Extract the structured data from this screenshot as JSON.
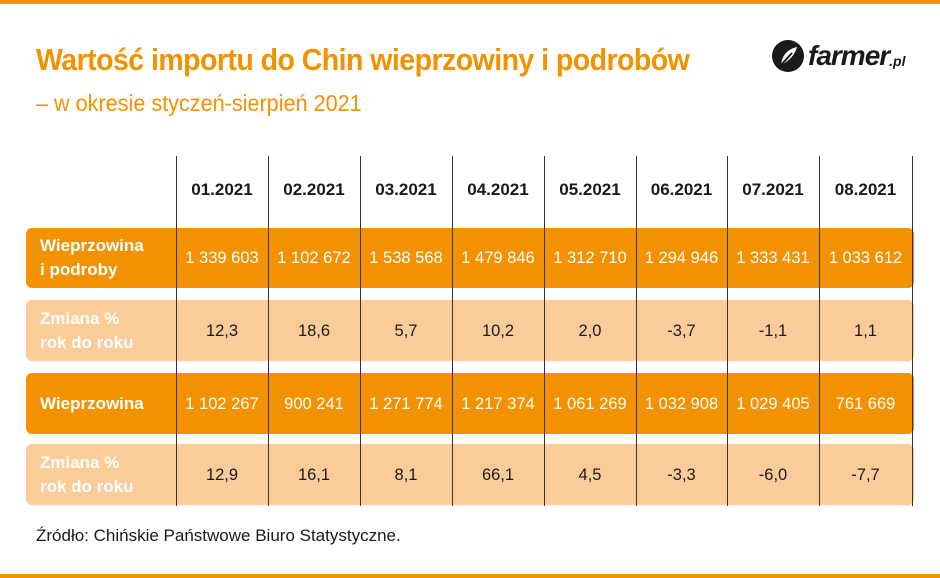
{
  "title": "Wartość importu do Chin wieprzowiny i podrobów",
  "subtitle": "– w okresie styczeń-sierpień 2021",
  "logo": {
    "text": "farmer",
    "suffix": ".pl"
  },
  "colors": {
    "accent": "#f39200",
    "light_band": "#fbcc99"
  },
  "chart_data": {
    "type": "table",
    "columns": [
      "01.2021",
      "02.2021",
      "03.2021",
      "04.2021",
      "05.2021",
      "06.2021",
      "07.2021",
      "08.2021"
    ],
    "rows": [
      {
        "label_line1": "Wieprzowina",
        "label_line2": "i podroby",
        "style": "dark",
        "values": [
          "1 339 603",
          "1 102 672",
          "1 538 568",
          "1 479 846",
          "1 312 710",
          "1 294 946",
          "1 333 431",
          "1 033 612"
        ]
      },
      {
        "label_line1": "Zmiana %",
        "label_line2": "rok do roku",
        "style": "light",
        "values": [
          "12,3",
          "18,6",
          "5,7",
          "10,2",
          "2,0",
          "-3,7",
          "-1,1",
          "1,1"
        ]
      },
      {
        "label_line1": "Wieprzowina",
        "label_line2": "",
        "style": "dark",
        "values": [
          "1 102 267",
          "900 241",
          "1 271 774",
          "1 217 374",
          "1 061 269",
          "1 032 908",
          "1 029 405",
          "761 669"
        ]
      },
      {
        "label_line1": "Zmiana %",
        "label_line2": "rok do roku",
        "style": "light",
        "values": [
          "12,9",
          "16,1",
          "8,1",
          "66,1",
          "4,5",
          "-3,3",
          "-6,0",
          "-7,7"
        ]
      }
    ]
  },
  "source": "Źródło: Chińskie Państwowe Biuro Statystyczne."
}
